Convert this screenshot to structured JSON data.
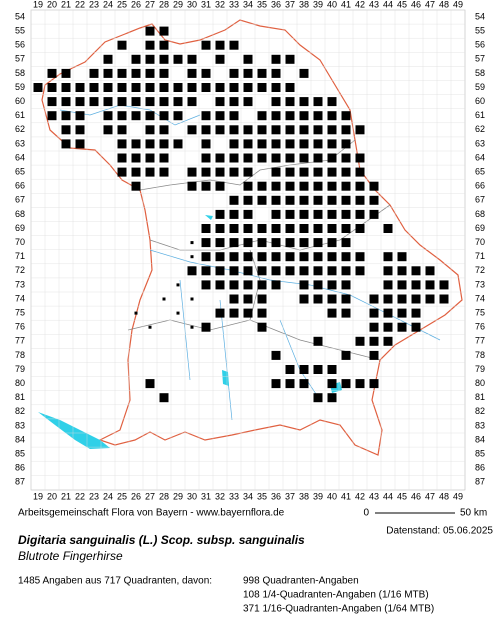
{
  "map": {
    "columns": [
      19,
      20,
      21,
      22,
      23,
      24,
      25,
      26,
      27,
      28,
      29,
      30,
      31,
      32,
      33,
      34,
      35,
      36,
      37,
      38,
      39,
      40,
      41,
      42,
      43,
      44,
      45,
      46,
      47,
      48,
      49
    ],
    "rows": [
      54,
      55,
      56,
      57,
      58,
      59,
      60,
      61,
      62,
      63,
      64,
      65,
      66,
      67,
      68,
      69,
      70,
      71,
      72,
      73,
      74,
      75,
      76,
      77,
      78,
      79,
      80,
      81,
      82,
      83,
      84,
      85,
      86,
      87
    ],
    "cells": [
      [
        27,
        55
      ],
      [
        28,
        55
      ],
      [
        25,
        56
      ],
      [
        27,
        56
      ],
      [
        28,
        56
      ],
      [
        31,
        56
      ],
      [
        32,
        56
      ],
      [
        33,
        56
      ],
      [
        24,
        57
      ],
      [
        26,
        57
      ],
      [
        27,
        57
      ],
      [
        28,
        57
      ],
      [
        29,
        57
      ],
      [
        30,
        57
      ],
      [
        32,
        57
      ],
      [
        34,
        57
      ],
      [
        36,
        57
      ],
      [
        37,
        57
      ],
      [
        20,
        58
      ],
      [
        21,
        58
      ],
      [
        23,
        58
      ],
      [
        24,
        58
      ],
      [
        25,
        58
      ],
      [
        26,
        58
      ],
      [
        27,
        58
      ],
      [
        28,
        58
      ],
      [
        30,
        58
      ],
      [
        31,
        58
      ],
      [
        33,
        58
      ],
      [
        34,
        58
      ],
      [
        35,
        58
      ],
      [
        36,
        58
      ],
      [
        38,
        58
      ],
      [
        19,
        59
      ],
      [
        20,
        59
      ],
      [
        21,
        59
      ],
      [
        22,
        59
      ],
      [
        23,
        59
      ],
      [
        24,
        59
      ],
      [
        25,
        59
      ],
      [
        26,
        59
      ],
      [
        27,
        59
      ],
      [
        28,
        59
      ],
      [
        29,
        59
      ],
      [
        30,
        59
      ],
      [
        31,
        59
      ],
      [
        32,
        59
      ],
      [
        33,
        59
      ],
      [
        34,
        59
      ],
      [
        35,
        59
      ],
      [
        36,
        59
      ],
      [
        37,
        59
      ],
      [
        20,
        60
      ],
      [
        21,
        60
      ],
      [
        22,
        60
      ],
      [
        23,
        60
      ],
      [
        24,
        60
      ],
      [
        25,
        60
      ],
      [
        26,
        60
      ],
      [
        27,
        60
      ],
      [
        28,
        60
      ],
      [
        29,
        60
      ],
      [
        30,
        60
      ],
      [
        32,
        60
      ],
      [
        33,
        60
      ],
      [
        34,
        60
      ],
      [
        36,
        60
      ],
      [
        37,
        60
      ],
      [
        38,
        60
      ],
      [
        39,
        60
      ],
      [
        40,
        60
      ],
      [
        20,
        61
      ],
      [
        21,
        61
      ],
      [
        22,
        61
      ],
      [
        24,
        61
      ],
      [
        25,
        61
      ],
      [
        26,
        61
      ],
      [
        27,
        61
      ],
      [
        28,
        61
      ],
      [
        29,
        61
      ],
      [
        31,
        61
      ],
      [
        32,
        61
      ],
      [
        33,
        61
      ],
      [
        35,
        61
      ],
      [
        36,
        61
      ],
      [
        37,
        61
      ],
      [
        38,
        61
      ],
      [
        39,
        61
      ],
      [
        40,
        61
      ],
      [
        41,
        61
      ],
      [
        21,
        62
      ],
      [
        22,
        62
      ],
      [
        24,
        62
      ],
      [
        25,
        62
      ],
      [
        27,
        62
      ],
      [
        28,
        62
      ],
      [
        30,
        62
      ],
      [
        31,
        62
      ],
      [
        32,
        62
      ],
      [
        33,
        62
      ],
      [
        34,
        62
      ],
      [
        35,
        62
      ],
      [
        36,
        62
      ],
      [
        37,
        62
      ],
      [
        38,
        62
      ],
      [
        39,
        62
      ],
      [
        40,
        62
      ],
      [
        41,
        62
      ],
      [
        42,
        62
      ],
      [
        21,
        63
      ],
      [
        22,
        63
      ],
      [
        25,
        63
      ],
      [
        26,
        63
      ],
      [
        27,
        63
      ],
      [
        28,
        63
      ],
      [
        29,
        63
      ],
      [
        31,
        63
      ],
      [
        33,
        63
      ],
      [
        34,
        63
      ],
      [
        35,
        63
      ],
      [
        36,
        63
      ],
      [
        37,
        63
      ],
      [
        38,
        63
      ],
      [
        39,
        63
      ],
      [
        40,
        63
      ],
      [
        41,
        63
      ],
      [
        25,
        64
      ],
      [
        26,
        64
      ],
      [
        27,
        64
      ],
      [
        28,
        64
      ],
      [
        31,
        64
      ],
      [
        32,
        64
      ],
      [
        33,
        64
      ],
      [
        34,
        64
      ],
      [
        35,
        64
      ],
      [
        36,
        64
      ],
      [
        37,
        64
      ],
      [
        38,
        64
      ],
      [
        39,
        64
      ],
      [
        40,
        64
      ],
      [
        41,
        64
      ],
      [
        42,
        64
      ],
      [
        25,
        65
      ],
      [
        26,
        65
      ],
      [
        27,
        65
      ],
      [
        28,
        65
      ],
      [
        30,
        65
      ],
      [
        31,
        65
      ],
      [
        32,
        65
      ],
      [
        33,
        65
      ],
      [
        34,
        65
      ],
      [
        36,
        65
      ],
      [
        37,
        65
      ],
      [
        38,
        65
      ],
      [
        39,
        65
      ],
      [
        40,
        65
      ],
      [
        41,
        65
      ],
      [
        42,
        65
      ],
      [
        26,
        66
      ],
      [
        30,
        66
      ],
      [
        31,
        66
      ],
      [
        32,
        66
      ],
      [
        34,
        66
      ],
      [
        35,
        66
      ],
      [
        36,
        66
      ],
      [
        37,
        66
      ],
      [
        38,
        66
      ],
      [
        39,
        66
      ],
      [
        40,
        66
      ],
      [
        41,
        66
      ],
      [
        42,
        66
      ],
      [
        43,
        66
      ],
      [
        33,
        67
      ],
      [
        34,
        67
      ],
      [
        35,
        67
      ],
      [
        36,
        67
      ],
      [
        37,
        67
      ],
      [
        38,
        67
      ],
      [
        39,
        67
      ],
      [
        40,
        67
      ],
      [
        41,
        67
      ],
      [
        42,
        67
      ],
      [
        43,
        67
      ],
      [
        32,
        68
      ],
      [
        33,
        68
      ],
      [
        34,
        68
      ],
      [
        36,
        68
      ],
      [
        37,
        68
      ],
      [
        38,
        68
      ],
      [
        39,
        68
      ],
      [
        40,
        68
      ],
      [
        41,
        68
      ],
      [
        42,
        68
      ],
      [
        43,
        68
      ],
      [
        31,
        69
      ],
      [
        32,
        69
      ],
      [
        33,
        69
      ],
      [
        34,
        69
      ],
      [
        35,
        69
      ],
      [
        36,
        69
      ],
      [
        37,
        69
      ],
      [
        38,
        69
      ],
      [
        39,
        69
      ],
      [
        40,
        69
      ],
      [
        41,
        69
      ],
      [
        42,
        69
      ],
      [
        44,
        69
      ],
      [
        31,
        70
      ],
      [
        32,
        70
      ],
      [
        33,
        70
      ],
      [
        34,
        70
      ],
      [
        35,
        70
      ],
      [
        36,
        70
      ],
      [
        37,
        70
      ],
      [
        38,
        70
      ],
      [
        39,
        70
      ],
      [
        40,
        70
      ],
      [
        41,
        70
      ],
      [
        31,
        71
      ],
      [
        32,
        71
      ],
      [
        33,
        71
      ],
      [
        34,
        71
      ],
      [
        35,
        71
      ],
      [
        36,
        71
      ],
      [
        37,
        71
      ],
      [
        38,
        71
      ],
      [
        39,
        71
      ],
      [
        40,
        71
      ],
      [
        41,
        71
      ],
      [
        42,
        71
      ],
      [
        44,
        71
      ],
      [
        45,
        71
      ],
      [
        30,
        72
      ],
      [
        31,
        72
      ],
      [
        32,
        72
      ],
      [
        33,
        72
      ],
      [
        34,
        72
      ],
      [
        35,
        72
      ],
      [
        36,
        72
      ],
      [
        37,
        72
      ],
      [
        38,
        72
      ],
      [
        39,
        72
      ],
      [
        40,
        72
      ],
      [
        41,
        72
      ],
      [
        42,
        72
      ],
      [
        44,
        72
      ],
      [
        45,
        72
      ],
      [
        46,
        72
      ],
      [
        47,
        72
      ],
      [
        31,
        73
      ],
      [
        32,
        73
      ],
      [
        33,
        73
      ],
      [
        34,
        73
      ],
      [
        35,
        73
      ],
      [
        36,
        73
      ],
      [
        38,
        73
      ],
      [
        39,
        73
      ],
      [
        40,
        73
      ],
      [
        41,
        73
      ],
      [
        44,
        73
      ],
      [
        45,
        73
      ],
      [
        46,
        73
      ],
      [
        47,
        73
      ],
      [
        48,
        73
      ],
      [
        33,
        74
      ],
      [
        34,
        74
      ],
      [
        35,
        74
      ],
      [
        38,
        74
      ],
      [
        39,
        74
      ],
      [
        40,
        74
      ],
      [
        41,
        74
      ],
      [
        43,
        74
      ],
      [
        44,
        74
      ],
      [
        45,
        74
      ],
      [
        46,
        74
      ],
      [
        47,
        74
      ],
      [
        48,
        74
      ],
      [
        32,
        75
      ],
      [
        33,
        75
      ],
      [
        34,
        75
      ],
      [
        35,
        75
      ],
      [
        40,
        75
      ],
      [
        41,
        75
      ],
      [
        43,
        75
      ],
      [
        44,
        75
      ],
      [
        45,
        75
      ],
      [
        46,
        75
      ],
      [
        31,
        76
      ],
      [
        35,
        76
      ],
      [
        43,
        76
      ],
      [
        44,
        76
      ],
      [
        45,
        76
      ],
      [
        46,
        76
      ],
      [
        39,
        77
      ],
      [
        42,
        77
      ],
      [
        43,
        77
      ],
      [
        44,
        77
      ],
      [
        36,
        78
      ],
      [
        41,
        78
      ],
      [
        43,
        78
      ],
      [
        37,
        79
      ],
      [
        38,
        79
      ],
      [
        39,
        79
      ],
      [
        40,
        79
      ],
      [
        27,
        80
      ],
      [
        36,
        80
      ],
      [
        37,
        80
      ],
      [
        38,
        80
      ],
      [
        40,
        80
      ],
      [
        41,
        80
      ],
      [
        42,
        80
      ],
      [
        43,
        80
      ],
      [
        28,
        81
      ],
      [
        39,
        81
      ],
      [
        40,
        81
      ]
    ],
    "small_dots": [
      [
        29,
        73
      ],
      [
        30,
        74
      ],
      [
        29,
        75
      ],
      [
        30,
        76
      ],
      [
        26,
        75
      ],
      [
        27,
        76
      ],
      [
        28,
        74
      ],
      [
        31,
        73
      ],
      [
        30,
        70
      ],
      [
        30,
        71
      ]
    ]
  },
  "credit": "Arbeitsgemeinschaft Flora von Bayern - www.bayernflora.de",
  "scale": {
    "start": "0",
    "end": "50 km"
  },
  "date": "Datenstand: 05.06.2025",
  "title": "Digitaria sanguinalis (L.) Scop. subsp. sanguinalis",
  "subtitle": "Blutrote Fingerhirse",
  "summary": "1485 Angaben aus 717 Quadranten, davon:",
  "details": [
    "998 Quadranten-Angaben",
    "108 1/4-Quadranten-Angaben (1/16 MTB)",
    "371 1/16-Quadranten-Angaben (1/64 MTB)"
  ]
}
